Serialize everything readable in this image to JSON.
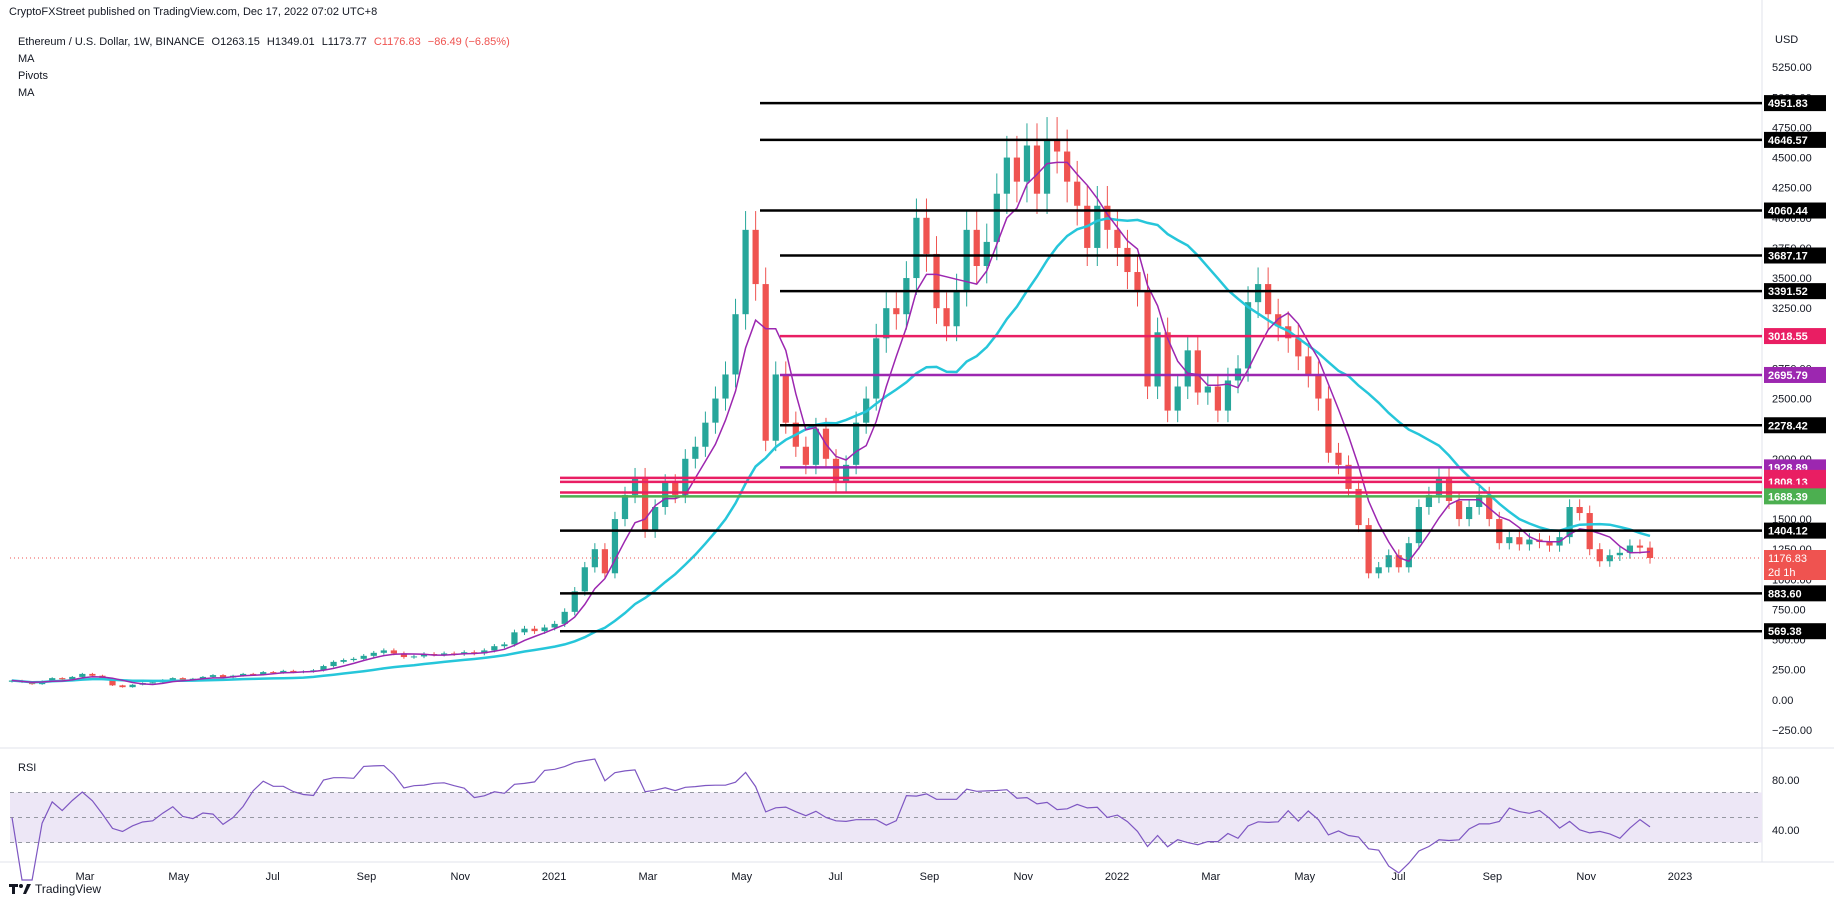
{
  "header": {
    "attribution": "CryptoFXStreet published on TradingView.com, Dec 17, 2022 07:02 UTC+8"
  },
  "legend": {
    "symbol": "Ethereum / U.S. Dollar, 1W, BINANCE",
    "open": "O1263.15",
    "high": "H1349.01",
    "low": "L1173.77",
    "close": "C1176.83",
    "change": "−86.49 (−6.85%)",
    "indicators": [
      "MA",
      "Pivots",
      "MA"
    ]
  },
  "footer": {
    "brand": "TradingView"
  },
  "chart_data": {
    "type": "candlestick",
    "title": "Ethereum / U.S. Dollar, 1W, BINANCE",
    "currency": "USD",
    "ylim": [
      -375,
      5600
    ],
    "y_ticks": [
      5250,
      5000,
      4750,
      4500,
      4250,
      4000,
      3750,
      3500,
      3250,
      3000,
      2750,
      2500,
      2250,
      2000,
      1750,
      1500,
      1250,
      1000,
      750,
      500,
      250,
      0,
      -250
    ],
    "y_tick_labels": [
      "5250.00",
      "5000.00",
      "4750.00",
      "4500.00",
      "4250.00",
      "4000.00",
      "3750.00",
      "3500.00",
      "3250.00",
      "3000.00",
      "2750.00",
      "2500.00",
      "2250.00",
      "2000.00",
      "1750.00",
      "1500.00",
      "1250.00",
      "1000.00",
      "750.00",
      "500.00",
      "250.00",
      "0.00",
      "−250.00"
    ],
    "x_labels": [
      "Mar",
      "May",
      "Jul",
      "Sep",
      "Nov",
      "2021",
      "Mar",
      "May",
      "Jul",
      "Sep",
      "Nov",
      "2022",
      "Mar",
      "May",
      "Jul",
      "Sep",
      "Nov",
      "2023"
    ],
    "current_price": {
      "value": 1176.83,
      "label": "1176.83",
      "countdown": "2d 1h"
    },
    "levels": [
      {
        "value": 4951.83,
        "label": "4951.83",
        "color": "#000000"
      },
      {
        "value": 4646.57,
        "label": "4646.57",
        "color": "#000000"
      },
      {
        "value": 4060.44,
        "label": "4060.44",
        "color": "#000000"
      },
      {
        "value": 3687.17,
        "label": "3687.17",
        "color": "#000000"
      },
      {
        "value": 3391.52,
        "label": "3391.52",
        "color": "#000000"
      },
      {
        "value": 3018.55,
        "label": "3018.55",
        "color": "#e91e63"
      },
      {
        "value": 2695.79,
        "label": "2695.79",
        "color": "#9c27b0"
      },
      {
        "value": 2278.42,
        "label": "2278.42",
        "color": "#000000"
      },
      {
        "value": 1928.89,
        "label": "1928.89",
        "color": "#9c27b0"
      },
      {
        "value": 1841.75,
        "label": "1841.75",
        "color": "#e91e63"
      },
      {
        "value": 1808.13,
        "label": "1808.13",
        "color": "#e91e63"
      },
      {
        "value": 1720.84,
        "label": "1720.84",
        "color": "#e91e63"
      },
      {
        "value": 1688.39,
        "label": "1688.39",
        "color": "#4caf50"
      },
      {
        "value": 1404.12,
        "label": "1404.12",
        "color": "#000000"
      },
      {
        "value": 883.6,
        "label": "883.60",
        "color": "#000000"
      },
      {
        "value": 569.38,
        "label": "569.38",
        "color": "#000000"
      }
    ],
    "candles": [
      [
        150,
        160
      ],
      [
        160,
        145
      ],
      [
        145,
        130
      ],
      [
        130,
        155
      ],
      [
        155,
        180
      ],
      [
        180,
        170
      ],
      [
        170,
        190
      ],
      [
        190,
        215
      ],
      [
        215,
        200
      ],
      [
        200,
        170
      ],
      [
        170,
        120
      ],
      [
        120,
        105
      ],
      [
        105,
        125
      ],
      [
        125,
        140
      ],
      [
        140,
        145
      ],
      [
        145,
        165
      ],
      [
        165,
        180
      ],
      [
        180,
        160
      ],
      [
        160,
        175
      ],
      [
        175,
        190
      ],
      [
        190,
        205
      ],
      [
        205,
        185
      ],
      [
        185,
        200
      ],
      [
        200,
        215
      ],
      [
        215,
        210
      ],
      [
        210,
        230
      ],
      [
        230,
        225
      ],
      [
        225,
        240
      ],
      [
        240,
        230
      ],
      [
        230,
        235
      ],
      [
        235,
        245
      ],
      [
        245,
        280
      ],
      [
        280,
        315
      ],
      [
        315,
        330
      ],
      [
        330,
        340
      ],
      [
        340,
        365
      ],
      [
        365,
        390
      ],
      [
        390,
        410
      ],
      [
        410,
        385
      ],
      [
        385,
        355
      ],
      [
        355,
        360
      ],
      [
        360,
        380
      ],
      [
        380,
        375
      ],
      [
        375,
        385
      ],
      [
        385,
        380
      ],
      [
        380,
        395
      ],
      [
        395,
        385
      ],
      [
        385,
        410
      ],
      [
        410,
        445
      ],
      [
        445,
        460
      ],
      [
        460,
        560
      ],
      [
        560,
        590
      ],
      [
        590,
        570
      ],
      [
        570,
        600
      ],
      [
        600,
        630
      ],
      [
        630,
        730
      ],
      [
        730,
        900
      ],
      [
        900,
        1100
      ],
      [
        1100,
        1250
      ],
      [
        1250,
        1050
      ],
      [
        1050,
        1500
      ],
      [
        1500,
        1700
      ],
      [
        1700,
        1850
      ],
      [
        1850,
        1400
      ],
      [
        1400,
        1600
      ],
      [
        1600,
        1800
      ],
      [
        1800,
        1700
      ],
      [
        1700,
        2000
      ],
      [
        2000,
        2100
      ],
      [
        2100,
        2300
      ],
      [
        2300,
        2500
      ],
      [
        2500,
        2700
      ],
      [
        2700,
        3200
      ],
      [
        3200,
        3900
      ],
      [
        3900,
        3450
      ],
      [
        3450,
        2150
      ],
      [
        2150,
        2700
      ],
      [
        2700,
        2300
      ],
      [
        2300,
        2100
      ],
      [
        2100,
        1950
      ],
      [
        1950,
        2250
      ],
      [
        2250,
        2000
      ],
      [
        2000,
        1800
      ],
      [
        1800,
        1950
      ],
      [
        1950,
        2300
      ],
      [
        2300,
        2500
      ],
      [
        2500,
        3000
      ],
      [
        3000,
        3250
      ],
      [
        3250,
        3200
      ],
      [
        3200,
        3500
      ],
      [
        3500,
        4000
      ],
      [
        4000,
        3700
      ],
      [
        3700,
        3250
      ],
      [
        3250,
        3100
      ],
      [
        3100,
        3400
      ],
      [
        3400,
        3900
      ],
      [
        3900,
        3600
      ],
      [
        3600,
        3800
      ],
      [
        3800,
        4200
      ],
      [
        4200,
        4500
      ],
      [
        4500,
        4300
      ],
      [
        4300,
        4600
      ],
      [
        4600,
        4200
      ],
      [
        4200,
        4650
      ],
      [
        4650,
        4550
      ],
      [
        4550,
        4300
      ],
      [
        4300,
        4100
      ],
      [
        4100,
        3750
      ],
      [
        3750,
        4100
      ],
      [
        4100,
        3900
      ],
      [
        3900,
        3750
      ],
      [
        3750,
        3550
      ],
      [
        3550,
        3400
      ],
      [
        3400,
        2600
      ],
      [
        2600,
        3050
      ],
      [
        3050,
        2400
      ],
      [
        2400,
        2600
      ],
      [
        2600,
        2900
      ],
      [
        2900,
        2550
      ],
      [
        2550,
        2600
      ],
      [
        2600,
        2400
      ],
      [
        2400,
        2650
      ],
      [
        2650,
        2750
      ],
      [
        2750,
        3300
      ],
      [
        3300,
        3450
      ],
      [
        3450,
        3200
      ],
      [
        3200,
        3100
      ],
      [
        3100,
        3000
      ],
      [
        3000,
        2850
      ],
      [
        2850,
        2700
      ],
      [
        2700,
        2500
      ],
      [
        2500,
        2050
      ],
      [
        2050,
        1950
      ],
      [
        1950,
        1750
      ],
      [
        1750,
        1450
      ],
      [
        1450,
        1050
      ],
      [
        1050,
        1100
      ],
      [
        1100,
        1200
      ],
      [
        1200,
        1100
      ],
      [
        1100,
        1300
      ],
      [
        1300,
        1600
      ],
      [
        1600,
        1700
      ],
      [
        1700,
        1850
      ],
      [
        1850,
        1650
      ],
      [
        1650,
        1500
      ],
      [
        1500,
        1600
      ],
      [
        1600,
        1700
      ],
      [
        1700,
        1500
      ],
      [
        1500,
        1300
      ],
      [
        1300,
        1350
      ],
      [
        1350,
        1290
      ],
      [
        1290,
        1330
      ],
      [
        1330,
        1310
      ],
      [
        1310,
        1280
      ],
      [
        1280,
        1350
      ],
      [
        1350,
        1600
      ],
      [
        1600,
        1550
      ],
      [
        1550,
        1250
      ],
      [
        1250,
        1150
      ],
      [
        1150,
        1200
      ],
      [
        1200,
        1220
      ],
      [
        1220,
        1280
      ],
      [
        1280,
        1263
      ],
      [
        1263,
        1176.83
      ]
    ],
    "rsi": {
      "label": "RSI",
      "ylim": [
        20,
        100
      ],
      "y_ticks": [
        80,
        40
      ],
      "y_tick_labels": [
        "80.00",
        "40.00"
      ],
      "overbought": 70,
      "oversold": 30,
      "mid": 50
    }
  },
  "colors": {
    "up": "#26a69a",
    "down": "#ef5350",
    "ma_slow": "#26c6da",
    "ma_fast": "#9c27b0",
    "rsi_line": "#7e57c2",
    "rsi_band": "#ede7f6"
  }
}
